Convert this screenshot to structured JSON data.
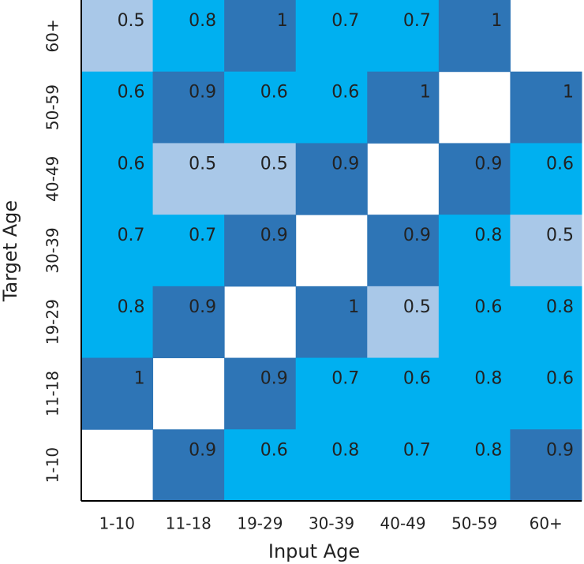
{
  "chart_data": {
    "type": "heatmap",
    "x_label": "Input Age",
    "y_label": "Target Age",
    "x_categories": [
      "1-10",
      "11-18",
      "19-29",
      "30-39",
      "40-49",
      "50-59",
      "60+"
    ],
    "y_categories": [
      "60+",
      "50-59",
      "40-49",
      "30-39",
      "19-29",
      "11-18",
      "1-10"
    ],
    "values": [
      [
        0.5,
        0.8,
        1,
        0.7,
        0.7,
        1,
        null
      ],
      [
        0.6,
        0.9,
        0.6,
        0.6,
        1,
        null,
        1
      ],
      [
        0.6,
        0.5,
        0.5,
        0.9,
        null,
        0.9,
        0.6
      ],
      [
        0.7,
        0.7,
        0.9,
        null,
        0.9,
        0.8,
        0.5
      ],
      [
        0.8,
        0.9,
        null,
        1,
        0.5,
        0.6,
        0.8
      ],
      [
        1,
        null,
        0.9,
        0.7,
        0.6,
        0.8,
        0.6
      ],
      [
        null,
        0.9,
        0.6,
        0.8,
        0.7,
        0.8,
        0.9
      ]
    ],
    "color_steps": [
      {
        "from": 0,
        "color": "#a9c8e8"
      },
      {
        "from": 0.6,
        "color": "#00b0f0"
      },
      {
        "from": 0.9,
        "color": "#2e75b6"
      }
    ]
  }
}
